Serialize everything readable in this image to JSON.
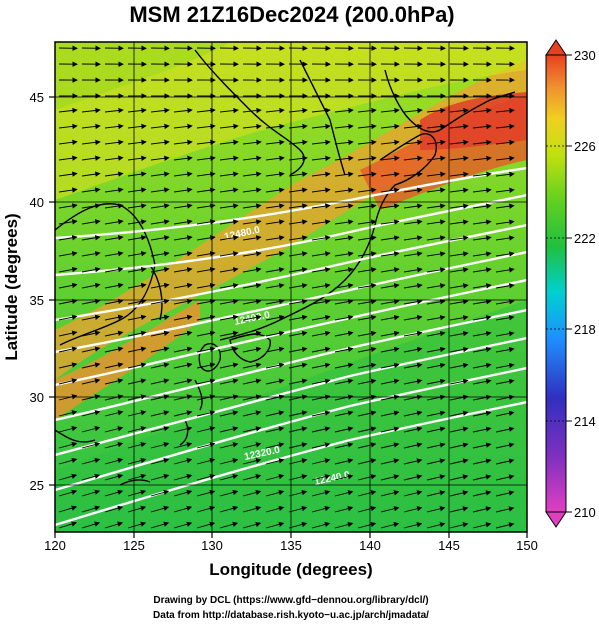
{
  "title": "MSM 21Z16Dec2024 (200.0hPa)",
  "map": {
    "xlabel": "Longitude (degrees)",
    "ylabel": "Latitude  (degrees)",
    "x_ticks": [
      "120",
      "125",
      "130",
      "135",
      "140",
      "145",
      "150"
    ],
    "y_ticks": [
      "25",
      "30",
      "35",
      "40",
      "45"
    ],
    "xlim": [
      120,
      150
    ],
    "ylim": [
      22.4,
      47.6
    ],
    "colorbar": {
      "range": [
        210,
        230
      ],
      "tick_labels": [
        "230",
        "226",
        "222",
        "218",
        "214",
        "210"
      ],
      "colors": [
        "#e040c0",
        "#3030c0",
        "#1e90ff",
        "#00d0d0",
        "#20c040",
        "#60d020",
        "#c0e010",
        "#f0d020",
        "#f09030",
        "#e84020"
      ]
    },
    "contour_labels": [
      "12480.0",
      "12400.0",
      "12320.0",
      "12240.0"
    ],
    "field_color_warm": "#f07830",
    "field_color_cool": "#40c840",
    "vector_color": "#000000",
    "contour_color": "#ffffff"
  },
  "credits": {
    "line1": "Drawing by DCL (https://www.gfd−dennou.org/library/dcl/)",
    "line2": "Data from http://database.rish.kyoto−u.ac.jp/arch/jmadata/"
  }
}
